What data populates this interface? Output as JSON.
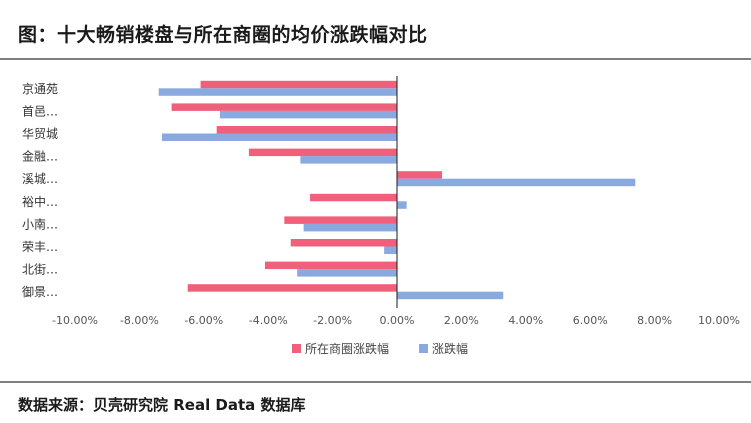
{
  "title": "图：十大畅销楼盘与所在商圈的均价涨跌幅对比",
  "source": "数据来源：贝壳研究院 Real Data 数据库",
  "chart_data": {
    "type": "bar",
    "orientation": "horizontal",
    "categories": [
      "京通苑",
      "首邑…",
      "华贸城",
      "金融…",
      "溪城…",
      "裕中…",
      "小南…",
      "荣丰…",
      "北街…",
      "御景…"
    ],
    "series": [
      {
        "name": "所在商圈涨跌幅",
        "color": "#f0607a",
        "values": [
          -6.1,
          -7.0,
          -5.6,
          -4.6,
          1.4,
          -2.7,
          -3.5,
          -3.3,
          -4.1,
          -6.5
        ]
      },
      {
        "name": "涨跌幅",
        "color": "#8aaadf",
        "values": [
          -7.4,
          -5.5,
          -7.3,
          -3.0,
          7.4,
          0.3,
          -2.9,
          -0.4,
          -3.1,
          3.3
        ]
      }
    ],
    "xlim": [
      -10,
      10
    ],
    "xticks": [
      -10,
      -8,
      -6,
      -4,
      -2,
      0,
      2,
      4,
      6,
      8,
      10
    ],
    "xtick_labels": [
      "-10.00%",
      "-8.00%",
      "-6.00%",
      "-4.00%",
      "-2.00%",
      "0.00%",
      "2.00%",
      "4.00%",
      "6.00%",
      "8.00%",
      "10.00%"
    ],
    "legend_position": "bottom"
  }
}
